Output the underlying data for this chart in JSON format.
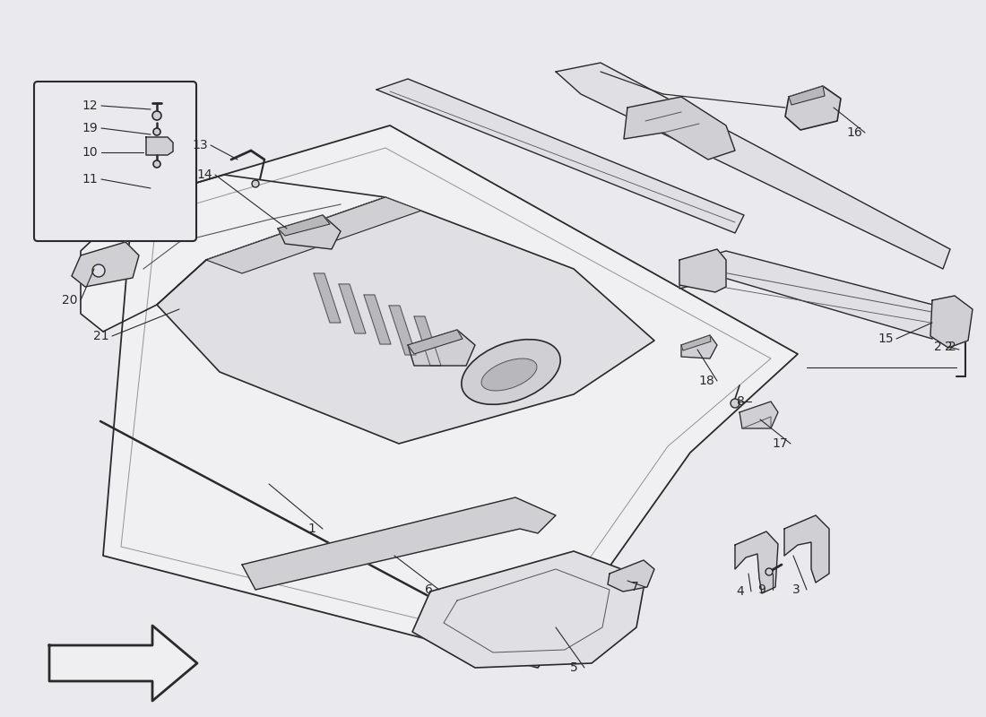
{
  "bg_color": "#eaeaee",
  "line_color": "#2a2a2a",
  "line_color_light": "#555555",
  "fill_white": "#f0f0f2",
  "fill_light": "#e0e0e4",
  "fill_mid": "#d0d0d4",
  "fill_dark": "#b8b8bc"
}
